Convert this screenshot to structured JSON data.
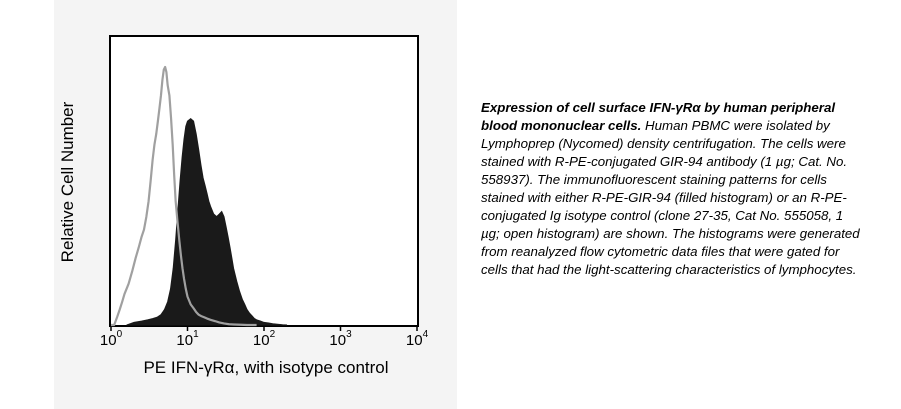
{
  "chart_data": {
    "type": "histogram",
    "xscale": "log",
    "xlim": [
      1,
      10000
    ],
    "xticks": [
      {
        "base": "10",
        "exp": "0"
      },
      {
        "base": "10",
        "exp": "1"
      },
      {
        "base": "10",
        "exp": "2"
      },
      {
        "base": "10",
        "exp": "3"
      },
      {
        "base": "10",
        "exp": "4"
      }
    ],
    "xlabel": "PE IFN-γRα, with isotype control",
    "ylabel": "Relative Cell Number",
    "ylim": [
      0,
      1
    ],
    "series": [
      {
        "style": "filled",
        "color": "#1a1a1a",
        "x": [
          1.6,
          2.0,
          2.5,
          3.0,
          3.5,
          4.0,
          4.5,
          5.0,
          5.5,
          6.0,
          6.5,
          7.0,
          7.5,
          8.0,
          8.5,
          9.0,
          9.5,
          10.0,
          11.0,
          12.0,
          13.0,
          14.0,
          15.0,
          16.0,
          17.0,
          18.0,
          19.0,
          20.0,
          22.0,
          24.0,
          26.0,
          28.0,
          30.0,
          32.0,
          34.0,
          36.0,
          38.0,
          40.0,
          44.0,
          48.0,
          52.0,
          56.0,
          60.0,
          65.0,
          70.0,
          75.0,
          80.0,
          90.0,
          100.0,
          115.0,
          130.0,
          150.0,
          175.0,
          200.0
        ],
        "y": [
          0.0,
          0.01,
          0.015,
          0.02,
          0.025,
          0.03,
          0.04,
          0.06,
          0.09,
          0.14,
          0.22,
          0.33,
          0.45,
          0.56,
          0.65,
          0.72,
          0.77,
          0.79,
          0.8,
          0.79,
          0.74,
          0.68,
          0.62,
          0.57,
          0.54,
          0.51,
          0.48,
          0.46,
          0.43,
          0.42,
          0.43,
          0.44,
          0.42,
          0.38,
          0.34,
          0.3,
          0.26,
          0.22,
          0.17,
          0.13,
          0.1,
          0.08,
          0.06,
          0.045,
          0.035,
          0.025,
          0.02,
          0.015,
          0.01,
          0.008,
          0.005,
          0.003,
          0.001,
          0.0
        ]
      },
      {
        "style": "outline",
        "color": "#a0a0a0",
        "x": [
          1.0,
          1.1,
          1.2,
          1.3,
          1.4,
          1.5,
          1.7,
          1.9,
          2.1,
          2.3,
          2.5,
          2.7,
          2.9,
          3.1,
          3.3,
          3.5,
          3.7,
          3.9,
          4.1,
          4.3,
          4.5,
          4.7,
          4.9,
          5.1,
          5.3,
          5.5,
          5.8,
          6.1,
          6.4,
          6.7,
          7.0,
          7.4,
          7.8,
          8.2,
          8.6,
          9.0,
          9.5,
          10.0,
          11.0,
          12.0,
          13.0,
          14.0,
          15.0,
          16.5,
          18.0,
          20.0,
          23.0,
          26.0,
          30.0,
          35.0,
          40.0,
          50.0,
          60.0,
          80.0
        ],
        "y": [
          0.0,
          0.0,
          0.03,
          0.06,
          0.09,
          0.12,
          0.16,
          0.21,
          0.26,
          0.3,
          0.34,
          0.37,
          0.42,
          0.48,
          0.56,
          0.64,
          0.7,
          0.74,
          0.79,
          0.84,
          0.89,
          0.95,
          0.99,
          1.0,
          0.98,
          0.93,
          0.89,
          0.8,
          0.7,
          0.58,
          0.48,
          0.4,
          0.33,
          0.27,
          0.22,
          0.18,
          0.14,
          0.11,
          0.08,
          0.065,
          0.05,
          0.04,
          0.035,
          0.03,
          0.025,
          0.02,
          0.015,
          0.01,
          0.006,
          0.003,
          0.002,
          0.001,
          0.0,
          0.0
        ]
      }
    ]
  },
  "caption": {
    "title": "Expression of cell surface IFN-γRα  by human peripheral blood mononuclear cells.",
    "body": " Human PBMC were isolated by Lymphoprep (Nycomed) density centrifugation. The cells were stained with R-PE-conjugated GIR-94 antibody (1 µg; Cat. No. 558937). The immunofluorescent staining patterns for cells stained with either R-PE-GIR-94 (filled histogram) or an R-PE-conjugated Ig isotype control (clone 27-35, Cat No. 555058, 1 µg; open histogram) are shown. The histograms were generated from reanalyzed flow cytometric data files that were gated for cells that had the light-scattering characteristics of lymphocytes."
  }
}
